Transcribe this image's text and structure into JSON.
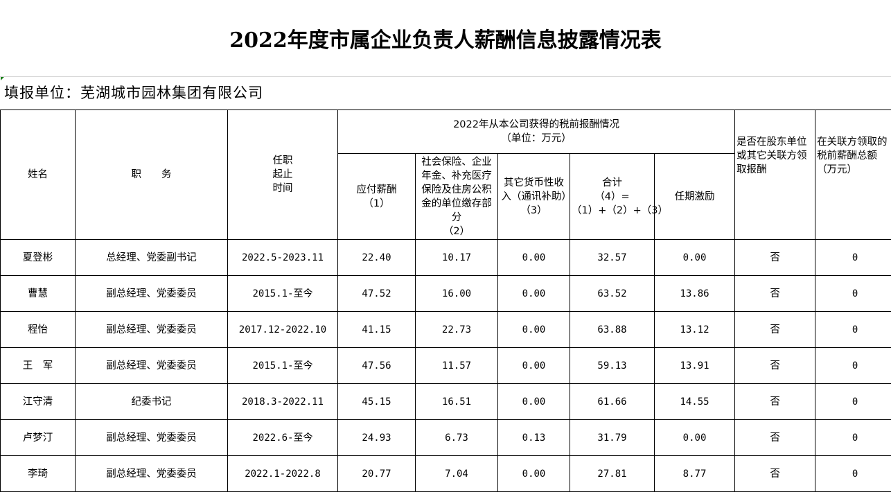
{
  "title": "2022年度市属企业负责人薪酬信息披露情况表",
  "unit_line": "填报单位：芜湖城市园林集团有限公司",
  "headers": {
    "name": "姓名",
    "position": "职　　务",
    "term": "任职\n起止\n时间",
    "group": "2022年从本公司获得的税前报酬情况\n（单位：万元）",
    "salary": "应付薪酬\n（1）",
    "insurance": "社会保险、企业年金、补充医疗保险及住房公积金的单位缴存部分\n（2）",
    "other": "其它货币性收入（通讯补助）（3）",
    "total": "合计\n（4）=（1）+（2）+（3）",
    "incentive": "任期激励",
    "shareholder": "是否在股东单位或其它关联方领取报酬",
    "related": "在关联方领取的税前薪酬总额（万元）"
  },
  "rows": [
    {
      "name": "夏登彬",
      "position": "总经理、党委副书记",
      "term": "2022.5-2023.11",
      "salary": "22.40",
      "insurance": "10.17",
      "other": "0.00",
      "total": "32.57",
      "incentive": "0.00",
      "shareholder": "否",
      "related": "0"
    },
    {
      "name": "曹慧",
      "position": "副总经理、党委委员",
      "term": "2015.1-至今",
      "salary": "47.52",
      "insurance": "16.00",
      "other": "0.00",
      "total": "63.52",
      "incentive": "13.86",
      "shareholder": "否",
      "related": "0"
    },
    {
      "name": "程怡",
      "position": "副总经理、党委委员",
      "term": "2017.12-2022.10",
      "salary": "41.15",
      "insurance": "22.73",
      "other": "0.00",
      "total": "63.88",
      "incentive": "13.12",
      "shareholder": "否",
      "related": "0"
    },
    {
      "name": "王　军",
      "position": "副总经理、党委委员",
      "term": "2015.1-至今",
      "salary": "47.56",
      "insurance": "11.57",
      "other": "0.00",
      "total": "59.13",
      "incentive": "13.91",
      "shareholder": "否",
      "related": "0"
    },
    {
      "name": "江守清",
      "position": "纪委书记",
      "term": "2018.3-2022.11",
      "salary": "45.15",
      "insurance": "16.51",
      "other": "0.00",
      "total": "61.66",
      "incentive": "14.55",
      "shareholder": "否",
      "related": "0"
    },
    {
      "name": "卢梦汀",
      "position": "副总经理、党委委员",
      "term": "2022.6-至今",
      "salary": "24.93",
      "insurance": "6.73",
      "other": "0.13",
      "total": "31.79",
      "incentive": "0.00",
      "shareholder": "否",
      "related": "0"
    },
    {
      "name": "李琦",
      "position": "副总经理、党委委员",
      "term": "2022.1-2022.8",
      "salary": "20.77",
      "insurance": "7.04",
      "other": "0.00",
      "total": "27.81",
      "incentive": "8.77",
      "shareholder": "否",
      "related": "0"
    }
  ]
}
